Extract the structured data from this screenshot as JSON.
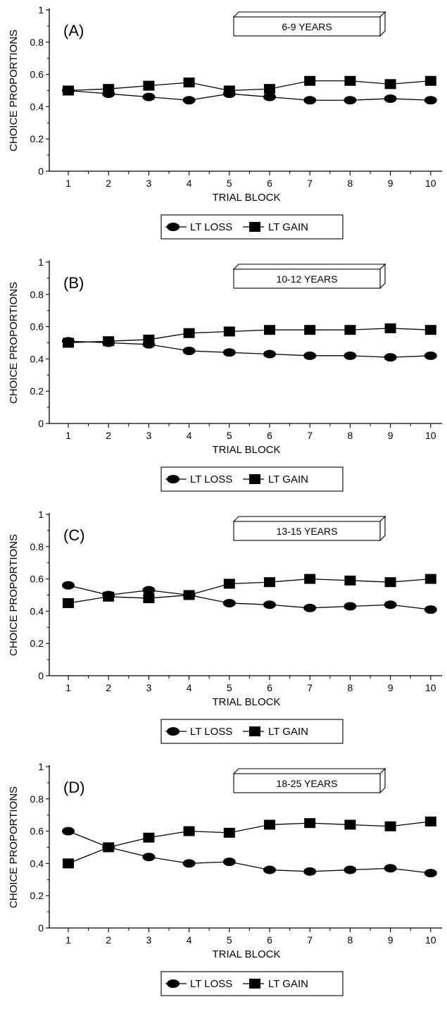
{
  "chart_data": [
    {
      "type": "line",
      "panel_label": "(A)",
      "box_label": "6-9 YEARS",
      "xlabel": "TRIAL BLOCK",
      "ylabel": "CHOICE PROPORTIONS",
      "ylim": [
        0,
        1
      ],
      "yticks": [
        "0",
        "0.2",
        "0.4",
        "0.6",
        "0.8",
        "1"
      ],
      "categories": [
        "1",
        "2",
        "3",
        "4",
        "5",
        "6",
        "7",
        "8",
        "9",
        "10"
      ],
      "series": [
        {
          "name": "LT LOSS",
          "marker": "circle",
          "values": [
            0.5,
            0.48,
            0.46,
            0.44,
            0.48,
            0.46,
            0.44,
            0.44,
            0.45,
            0.44
          ]
        },
        {
          "name": "LT GAIN",
          "marker": "square",
          "values": [
            0.5,
            0.51,
            0.53,
            0.55,
            0.5,
            0.51,
            0.56,
            0.56,
            0.54,
            0.56
          ]
        }
      ],
      "legend_position": "bottom-center"
    },
    {
      "type": "line",
      "panel_label": "(B)",
      "box_label": "10-12 YEARS",
      "xlabel": "TRIAL BLOCK",
      "ylabel": "CHOICE PROPORTIONS",
      "ylim": [
        0,
        1
      ],
      "yticks": [
        "0",
        "0.2",
        "0.4",
        "0.6",
        "0.8",
        "1"
      ],
      "categories": [
        "1",
        "2",
        "3",
        "4",
        "5",
        "6",
        "7",
        "8",
        "9",
        "10"
      ],
      "series": [
        {
          "name": "LT LOSS",
          "marker": "circle",
          "values": [
            0.51,
            0.5,
            0.49,
            0.45,
            0.44,
            0.43,
            0.42,
            0.42,
            0.41,
            0.42
          ]
        },
        {
          "name": "LT GAIN",
          "marker": "square",
          "values": [
            0.5,
            0.51,
            0.52,
            0.56,
            0.57,
            0.58,
            0.58,
            0.58,
            0.59,
            0.58
          ]
        }
      ],
      "legend_position": "bottom-center"
    },
    {
      "type": "line",
      "panel_label": "(C)",
      "box_label": "13-15 YEARS",
      "xlabel": "TRIAL BLOCK",
      "ylabel": "CHOICE PROPORTIONS",
      "ylim": [
        0,
        1
      ],
      "yticks": [
        "0",
        "0.2",
        "0.4",
        "0.6",
        "0.8",
        "1"
      ],
      "categories": [
        "1",
        "2",
        "3",
        "4",
        "5",
        "6",
        "7",
        "8",
        "9",
        "10"
      ],
      "series": [
        {
          "name": "LT LOSS",
          "marker": "circle",
          "values": [
            0.56,
            0.5,
            0.53,
            0.5,
            0.45,
            0.44,
            0.42,
            0.43,
            0.44,
            0.41
          ]
        },
        {
          "name": "LT GAIN",
          "marker": "square",
          "values": [
            0.45,
            0.49,
            0.48,
            0.5,
            0.57,
            0.58,
            0.6,
            0.59,
            0.58,
            0.6
          ]
        }
      ],
      "legend_position": "bottom-center"
    },
    {
      "type": "line",
      "panel_label": "(D)",
      "box_label": "18-25 YEARS",
      "xlabel": "TRIAL BLOCK",
      "ylabel": "CHOICE PROPORTIONS",
      "ylim": [
        0,
        1
      ],
      "yticks": [
        "0",
        "0.2",
        "0.4",
        "0.6",
        "0.8",
        "1"
      ],
      "categories": [
        "1",
        "2",
        "3",
        "4",
        "5",
        "6",
        "7",
        "8",
        "9",
        "10"
      ],
      "series": [
        {
          "name": "LT LOSS",
          "marker": "circle",
          "values": [
            0.6,
            0.5,
            0.44,
            0.4,
            0.41,
            0.36,
            0.35,
            0.36,
            0.37,
            0.34
          ]
        },
        {
          "name": "LT GAIN",
          "marker": "square",
          "values": [
            0.4,
            0.5,
            0.56,
            0.6,
            0.59,
            0.64,
            0.65,
            0.64,
            0.63,
            0.66
          ]
        }
      ],
      "legend_position": "bottom-center"
    }
  ]
}
